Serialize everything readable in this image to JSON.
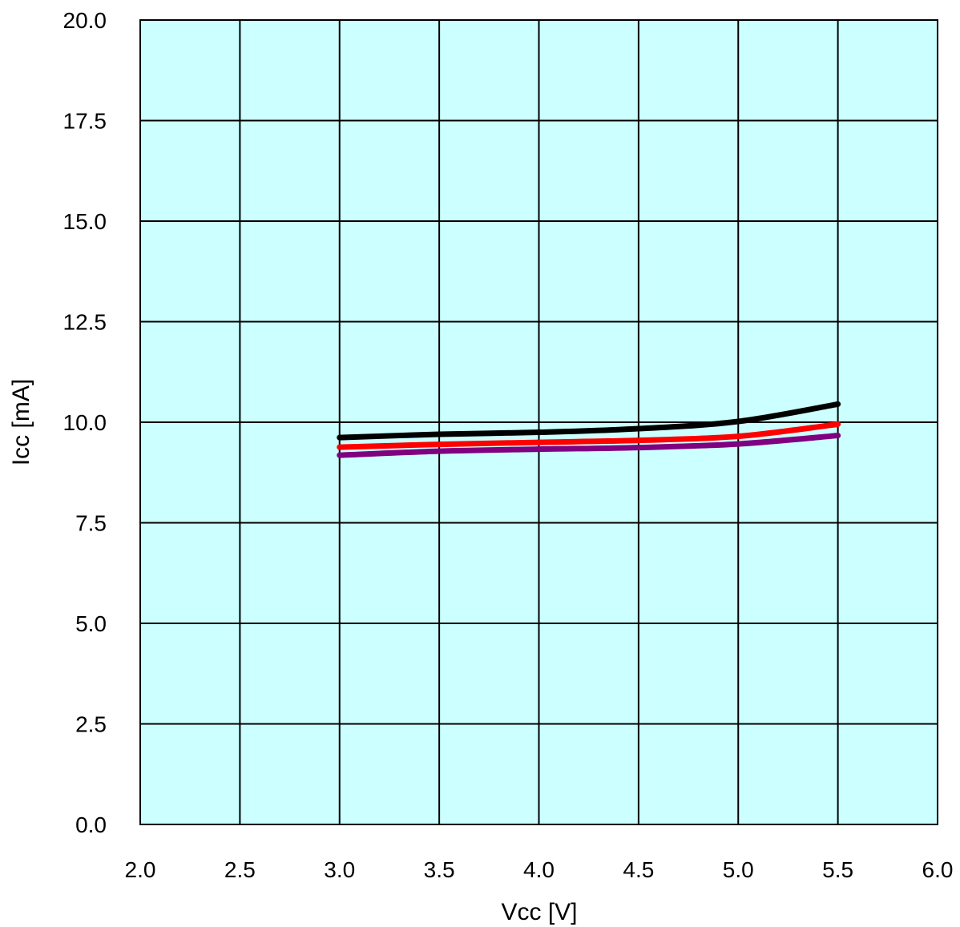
{
  "chart_data": {
    "type": "line",
    "title": "",
    "xlabel": "Vcc [V]",
    "ylabel": "Icc [mA]",
    "xlim": [
      2.0,
      6.0
    ],
    "ylim": [
      0.0,
      20.0
    ],
    "x_ticks": [
      "2.0",
      "2.5",
      "3.0",
      "3.5",
      "4.0",
      "4.5",
      "5.0",
      "5.5",
      "6.0"
    ],
    "y_ticks": [
      "0.0",
      "2.5",
      "5.0",
      "7.5",
      "10.0",
      "12.5",
      "15.0",
      "17.5",
      "20.0"
    ],
    "grid": true,
    "legend": "none",
    "colors": {
      "plot_background": "#ccffff",
      "grid": "#000000"
    },
    "x": [
      3.0,
      3.5,
      4.0,
      4.5,
      5.0,
      5.5
    ],
    "series": [
      {
        "color": "#000000",
        "values": [
          9.62,
          9.7,
          9.75,
          9.84,
          10.02,
          10.45
        ]
      },
      {
        "color": "#ff0000",
        "values": [
          9.38,
          9.45,
          9.5,
          9.55,
          9.65,
          9.95
        ]
      },
      {
        "color": "#800080",
        "values": [
          9.18,
          9.28,
          9.33,
          9.37,
          9.46,
          9.67
        ]
      }
    ]
  }
}
